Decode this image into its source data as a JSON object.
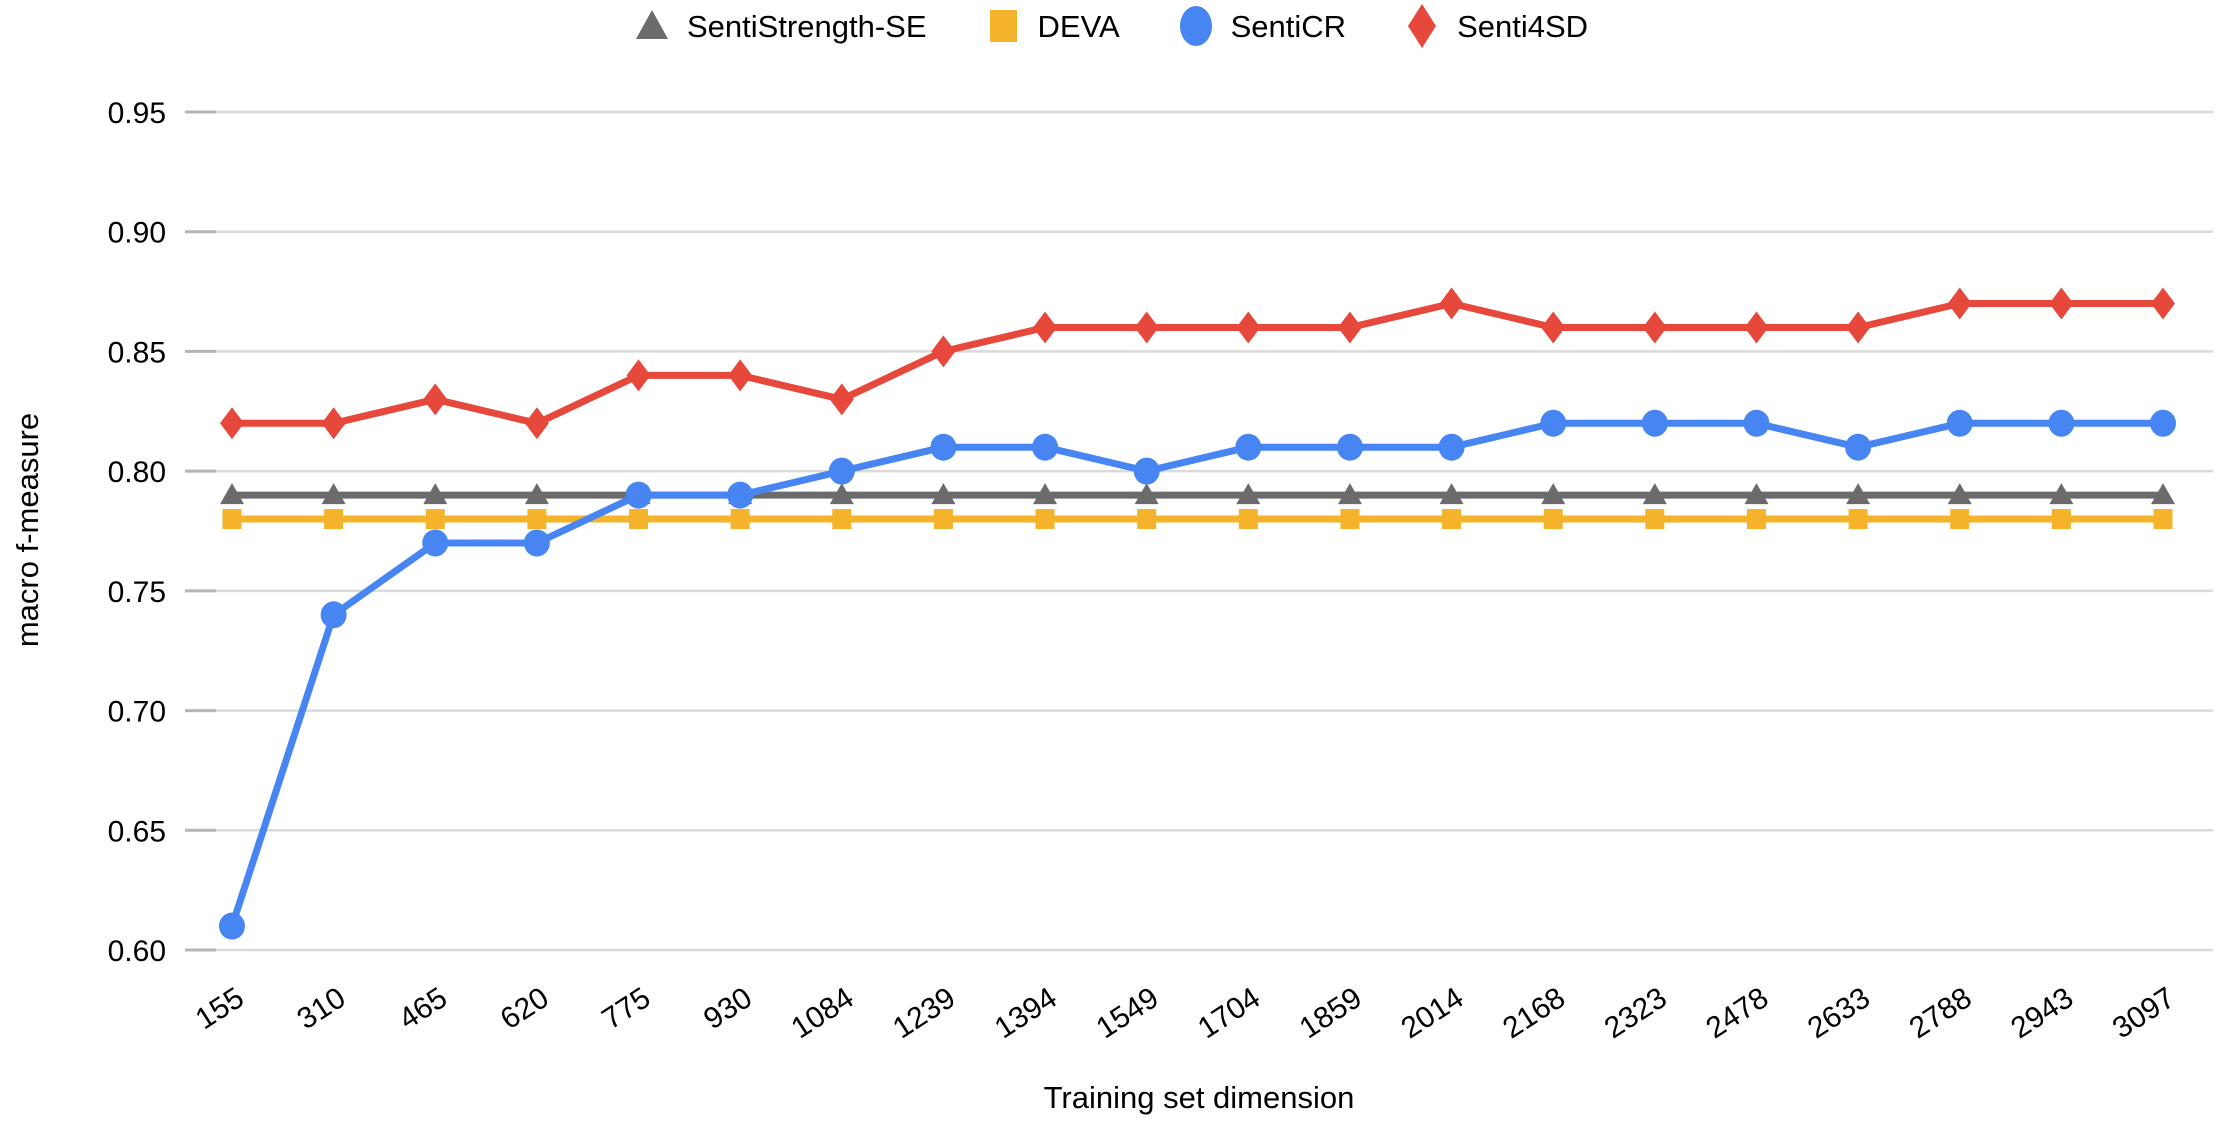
{
  "page": {
    "background": "#ffffff"
  },
  "chart_data": {
    "type": "line",
    "title": "",
    "xlabel": "Training set dimension",
    "ylabel": "macro f-measure",
    "legend_position": "top-center",
    "grid": "horizontal-only",
    "ylim": [
      0.6,
      0.95
    ],
    "ytick_step": 0.05,
    "y_tick_labels": [
      "0.60",
      "0.65",
      "0.70",
      "0.75",
      "0.80",
      "0.85",
      "0.90",
      "0.95"
    ],
    "categories": [
      "155",
      "310",
      "465",
      "620",
      "775",
      "930",
      "1084",
      "1239",
      "1394",
      "1549",
      "1704",
      "1859",
      "2014",
      "2168",
      "2323",
      "2478",
      "2633",
      "2788",
      "2943",
      "3097"
    ],
    "colors": {
      "gridline": "#DADADA",
      "tick": "#B5B5B5",
      "text": "#000000",
      "background": "#FFFFFF"
    },
    "series": [
      {
        "name": "SentiStrength-SE",
        "marker": "triangle",
        "color": "#6B6B6B",
        "values": [
          0.79,
          0.79,
          0.79,
          0.79,
          0.79,
          0.79,
          0.79,
          0.79,
          0.79,
          0.79,
          0.79,
          0.79,
          0.79,
          0.79,
          0.79,
          0.79,
          0.79,
          0.79,
          0.79,
          0.79
        ]
      },
      {
        "name": "DEVA",
        "marker": "square",
        "color": "#F5B32B",
        "values": [
          0.78,
          0.78,
          0.78,
          0.78,
          0.78,
          0.78,
          0.78,
          0.78,
          0.78,
          0.78,
          0.78,
          0.78,
          0.78,
          0.78,
          0.78,
          0.78,
          0.78,
          0.78,
          0.78,
          0.78
        ]
      },
      {
        "name": "SentiCR",
        "marker": "circle",
        "color": "#4785F2",
        "values": [
          0.61,
          0.74,
          0.77,
          0.77,
          0.79,
          0.79,
          0.8,
          0.81,
          0.81,
          0.8,
          0.81,
          0.81,
          0.81,
          0.82,
          0.82,
          0.82,
          0.81,
          0.82,
          0.82,
          0.82
        ]
      },
      {
        "name": "Senti4SD",
        "marker": "diamond",
        "color": "#E7483C",
        "values": [
          0.82,
          0.82,
          0.83,
          0.82,
          0.84,
          0.84,
          0.83,
          0.85,
          0.86,
          0.86,
          0.86,
          0.86,
          0.87,
          0.86,
          0.86,
          0.86,
          0.86,
          0.87,
          0.87,
          0.87
        ]
      }
    ]
  }
}
